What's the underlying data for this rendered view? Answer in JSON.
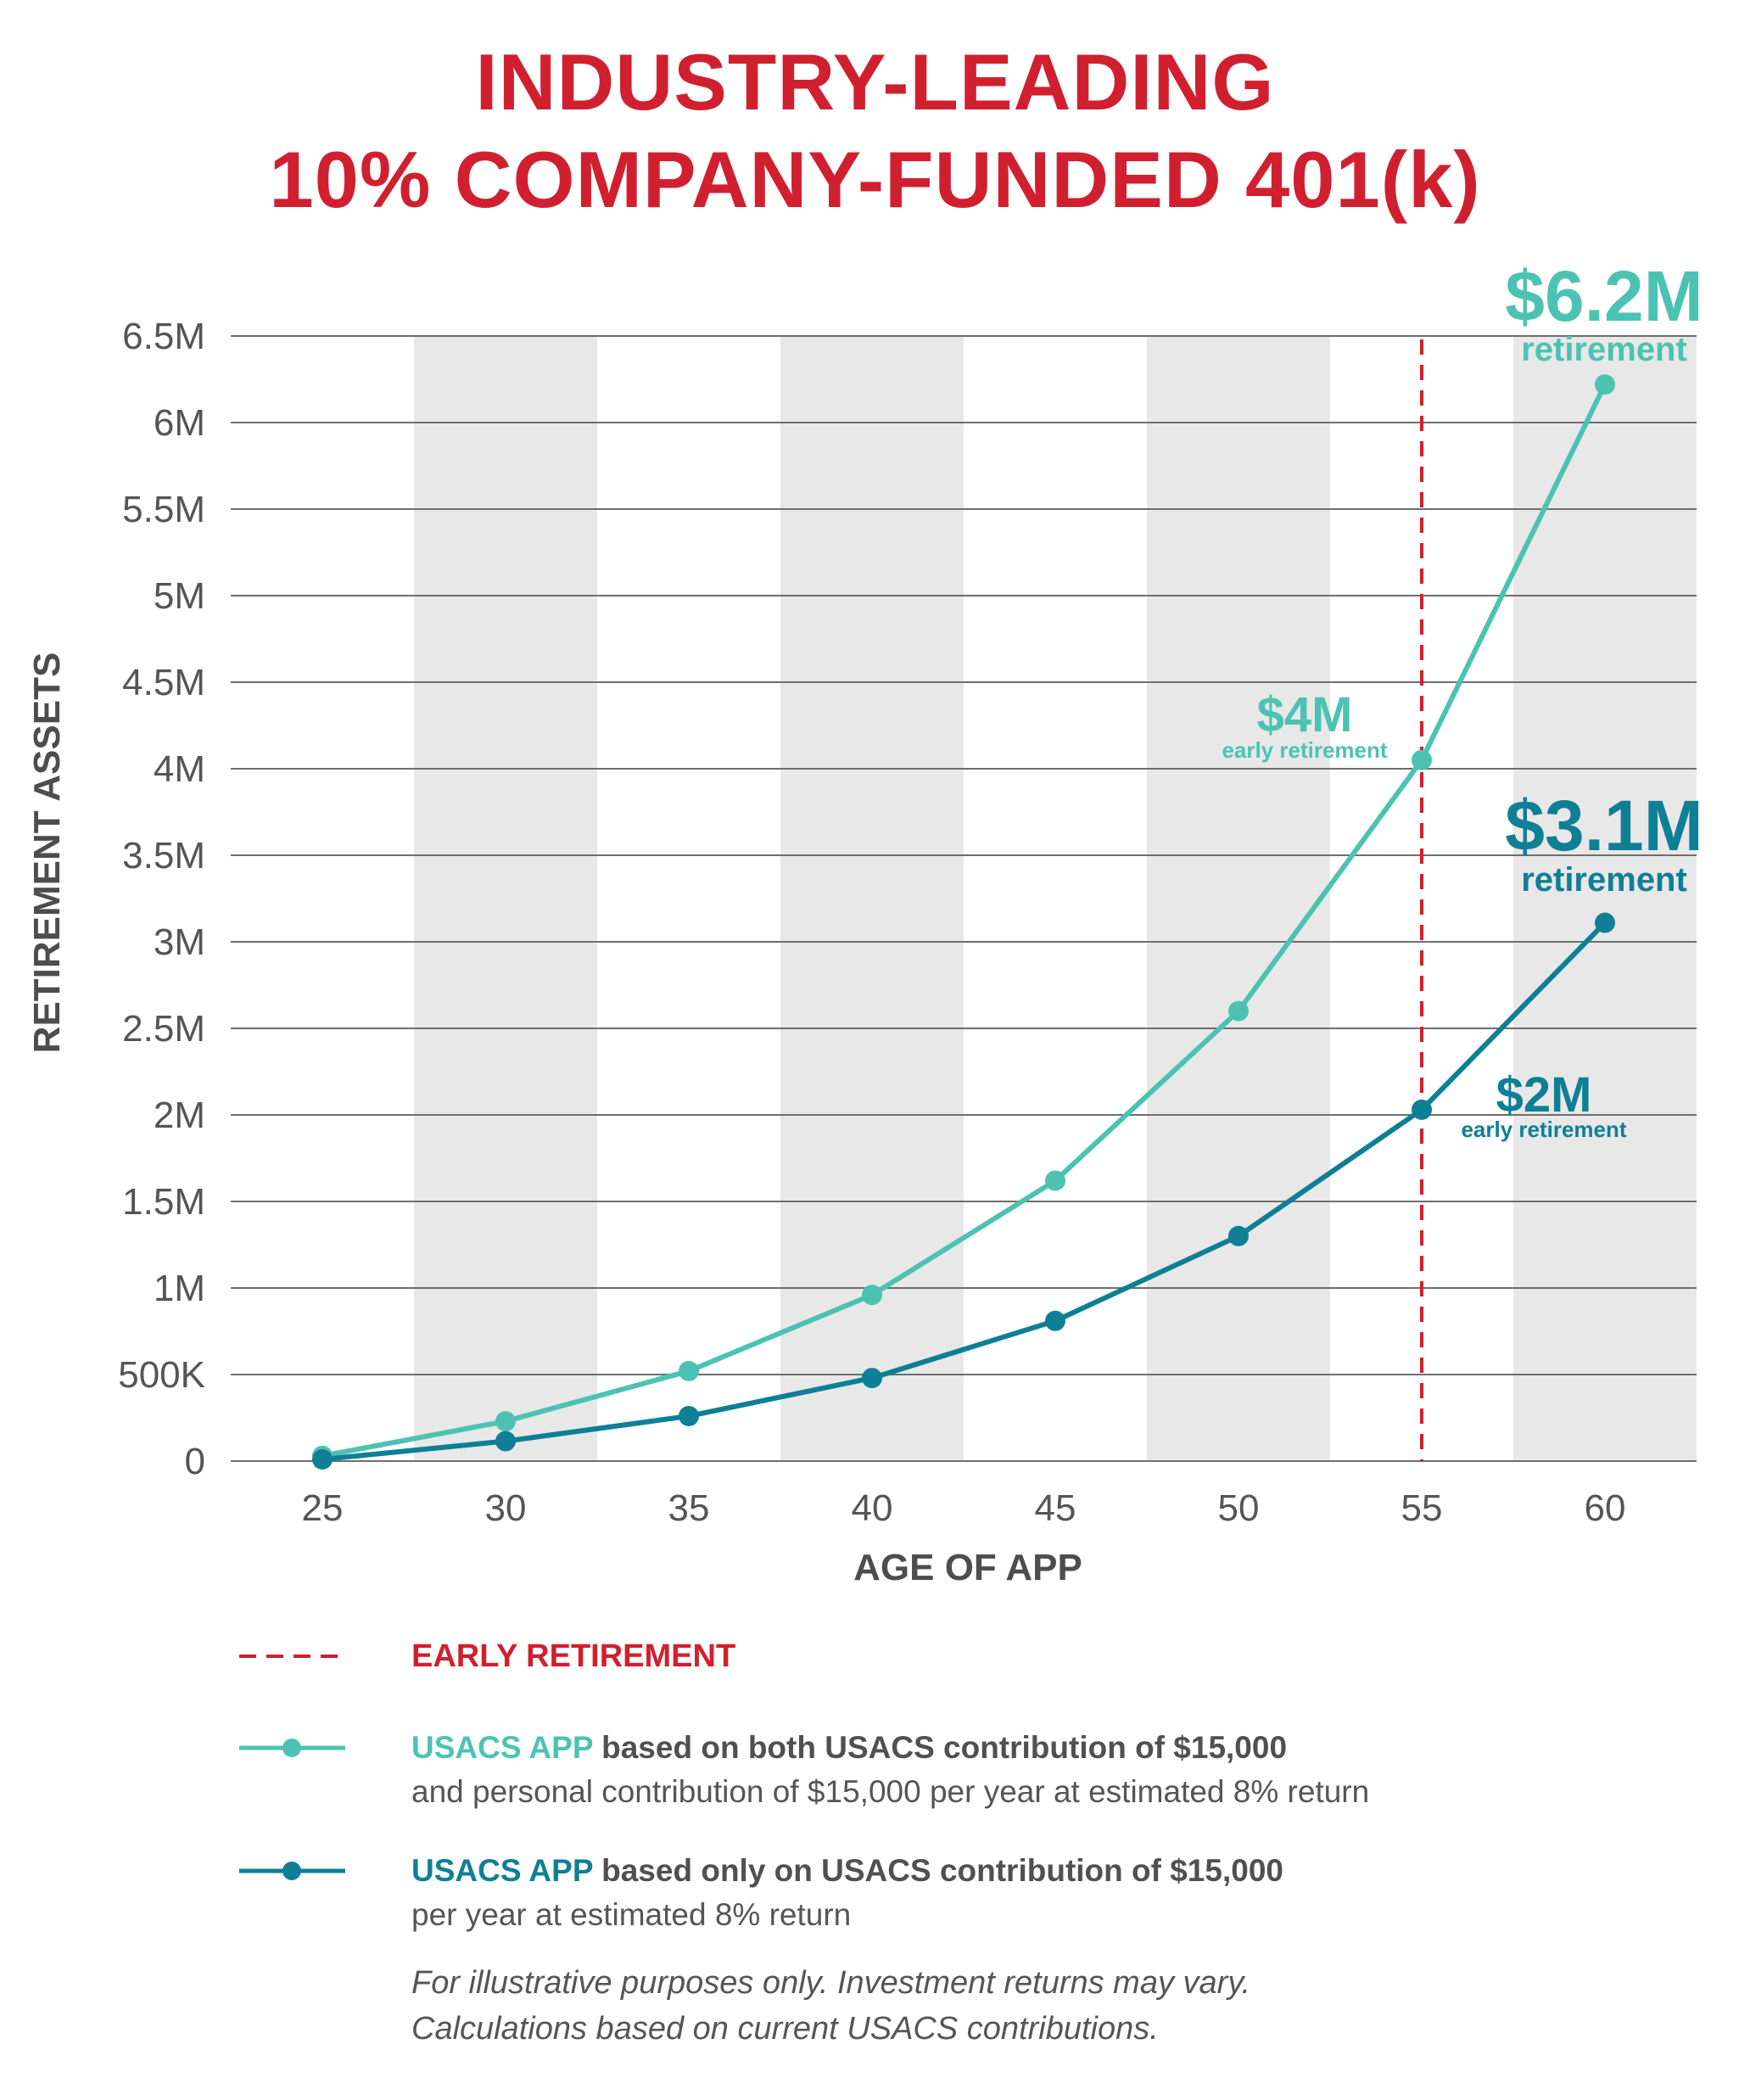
{
  "title_line1": "INDUSTRY-LEADING",
  "title_line2": "10% COMPANY-FUNDED 401(k)",
  "colors": {
    "title_red": "#d0202f",
    "series_light": "#4cc3b2",
    "series_dark": "#0f7f96",
    "band_gray": "#e8e8e8",
    "gridline": "#6e6e6e"
  },
  "chart_data": {
    "type": "line",
    "xlabel": "AGE OF APP",
    "ylabel": "RETIREMENT ASSETS",
    "x": [
      25,
      30,
      35,
      40,
      45,
      50,
      55,
      60
    ],
    "xlim": [
      22.5,
      62.5
    ],
    "ylim": [
      0,
      6500000
    ],
    "y_ticks": [
      0,
      500000,
      1000000,
      1500000,
      2000000,
      2500000,
      3000000,
      3500000,
      4000000,
      4500000,
      5000000,
      5500000,
      6000000,
      6500000
    ],
    "y_tick_labels": [
      "0",
      "500K",
      "1M",
      "1.5M",
      "2M",
      "2.5M",
      "3M",
      "3.5M",
      "4M",
      "4.5M",
      "5M",
      "5.5M",
      "6M",
      "6.5M"
    ],
    "x_tick_labels": [
      "25",
      "30",
      "35",
      "40",
      "45",
      "50",
      "55",
      "60"
    ],
    "grid": "horizontal",
    "shaded_bands": [
      [
        27.5,
        32.5
      ],
      [
        37.5,
        42.5
      ],
      [
        47.5,
        52.5
      ],
      [
        57.5,
        62.5
      ]
    ],
    "early_retirement_x": 55,
    "series": [
      {
        "values": [
          30000,
          230000,
          520000,
          960000,
          1620000,
          2600000,
          4050000,
          6220000
        ],
        "color": "#4cc3b2"
      },
      {
        "values": [
          10000,
          115000,
          260000,
          480000,
          810000,
          1300000,
          2030000,
          3110000
        ],
        "color": "#0f7f96"
      }
    ],
    "annotations": [
      {
        "value": "$6.2M",
        "sub": "retirement",
        "color": "#4cc3b2"
      },
      {
        "value": "$4M",
        "sub": "early retirement",
        "color": "#4cc3b2"
      },
      {
        "value": "$3.1M",
        "sub": "retirement",
        "color": "#0f7f96"
      },
      {
        "value": "$2M",
        "sub": "early retirement",
        "color": "#0f7f96"
      }
    ]
  },
  "legend": {
    "early": "EARLY RETIREMENT",
    "light_prefix": "USACS APP",
    "light_bold": " based on both USACS contribution of $15,000",
    "light_line2": "and personal contribution of $15,000 per year at estimated 8% return",
    "dark_prefix": "USACS APP",
    "dark_bold": " based only on USACS contribution of $15,000",
    "dark_line2": "per year at estimated 8% return"
  },
  "footnote_line1": "For illustrative purposes only. Investment returns may vary.",
  "footnote_line2": "Calculations based on current USACS contributions."
}
